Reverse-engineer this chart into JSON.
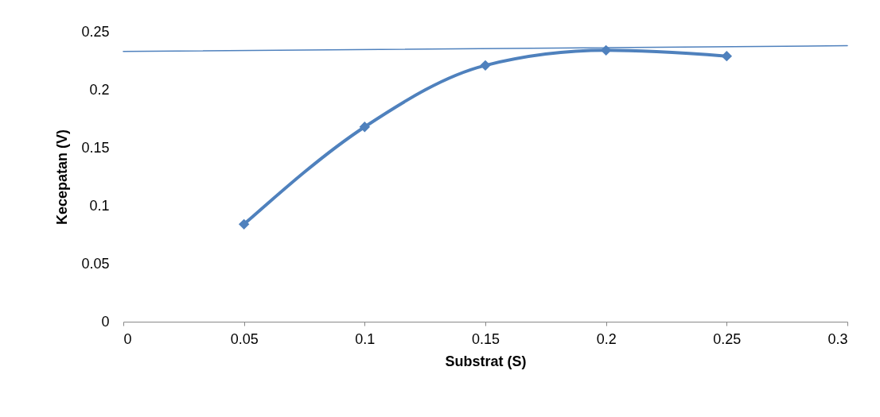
{
  "chart_data": {
    "type": "line",
    "xlabel": "Substrat (S)",
    "ylabel": "Kecepatan (V)",
    "x": [
      0.05,
      0.1,
      0.15,
      0.2,
      0.25
    ],
    "series": [
      {
        "color": "#4f81bd",
        "values": [
          0.084,
          0.168,
          0.221,
          0.234,
          0.229
        ],
        "marker": "diamond"
      },
      {
        "type": "line",
        "color": "#4f81bd",
        "x": [
          0,
          0.3
        ],
        "values": [
          0.233,
          0.238
        ],
        "marker": "none"
      }
    ],
    "xlim": [
      0,
      0.3
    ],
    "xticks": [
      0,
      0.05,
      0.1,
      0.15,
      0.2,
      0.25,
      0.3
    ],
    "ylim": [
      0,
      0.25
    ],
    "yticks": [
      0,
      0.05,
      0.1,
      0.15,
      0.2,
      0.25
    ],
    "grid": false
  }
}
